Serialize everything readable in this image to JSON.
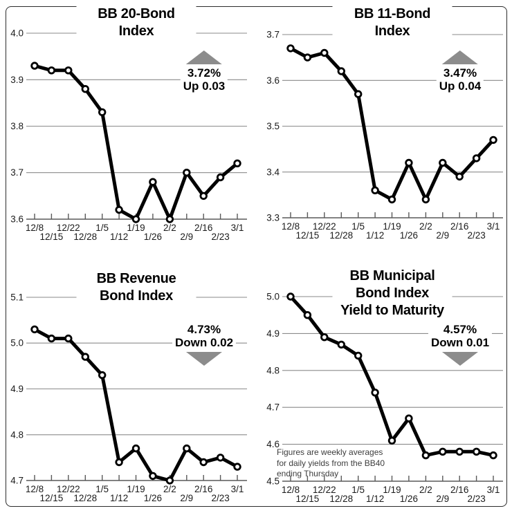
{
  "figure": {
    "colors": {
      "line": "#000000",
      "marker_fill": "#ffffff",
      "grid": "#8a8a8a",
      "arrow": "#8c8c8c"
    }
  },
  "chart_data": [
    {
      "id": "bb-20-bond-index",
      "type": "line",
      "title": "BB 20-Bond Index",
      "x": [
        "12/8",
        "12/15",
        "12/22",
        "12/28",
        "1/5",
        "1/12",
        "1/19",
        "1/26",
        "2/2",
        "2/9",
        "2/16",
        "2/23",
        "3/1"
      ],
      "values": [
        3.93,
        3.92,
        3.92,
        3.88,
        3.83,
        3.62,
        3.6,
        3.68,
        3.6,
        3.7,
        3.65,
        3.69,
        3.72
      ],
      "y_ticks": [
        "4.0",
        "3.9",
        "3.8",
        "3.7",
        "3.6"
      ],
      "ylim": [
        3.6,
        4.0
      ],
      "grid": true,
      "legend": null,
      "annotation": {
        "value": "3.72%",
        "change": "Up 0.03",
        "direction": "up"
      }
    },
    {
      "id": "bb-11-bond-index",
      "type": "line",
      "title": "BB 11-Bond Index",
      "x": [
        "12/8",
        "12/15",
        "12/22",
        "12/28",
        "1/5",
        "1/12",
        "1/19",
        "1/26",
        "2/2",
        "2/9",
        "2/16",
        "2/23",
        "3/1"
      ],
      "values": [
        3.67,
        3.65,
        3.66,
        3.62,
        3.57,
        3.36,
        3.34,
        3.42,
        3.34,
        3.42,
        3.39,
        3.43,
        3.47
      ],
      "y_ticks": [
        "3.7",
        "3.6",
        "3.5",
        "3.4",
        "3.3"
      ],
      "ylim": [
        3.3,
        3.7
      ],
      "grid": true,
      "legend": null,
      "annotation": {
        "value": "3.47%",
        "change": "Up 0.04",
        "direction": "up"
      }
    },
    {
      "id": "bb-revenue-bond-index",
      "type": "line",
      "title": "BB Revenue Bond Index",
      "x": [
        "12/8",
        "12/15",
        "12/22",
        "12/28",
        "1/5",
        "1/12",
        "1/19",
        "1/26",
        "2/2",
        "2/9",
        "2/16",
        "2/23",
        "3/1"
      ],
      "values": [
        5.03,
        5.01,
        5.01,
        4.97,
        4.93,
        4.74,
        4.77,
        4.71,
        4.7,
        4.77,
        4.74,
        4.75,
        4.73
      ],
      "y_ticks": [
        "5.1",
        "5.0",
        "4.9",
        "4.8",
        "4.7"
      ],
      "ylim": [
        4.7,
        5.1
      ],
      "grid": true,
      "legend": null,
      "annotation": {
        "value": "4.73%",
        "change": "Down 0.02",
        "direction": "down"
      }
    },
    {
      "id": "bb-municipal-bond-index-yield-to-maturity",
      "type": "line",
      "title": "BB Municipal Bond Index\nYield to Maturity",
      "x": [
        "12/8",
        "12/15",
        "12/22",
        "12/28",
        "1/5",
        "1/12",
        "1/19",
        "1/26",
        "2/2",
        "2/9",
        "2/16",
        "2/23",
        "3/1"
      ],
      "values": [
        5.0,
        4.95,
        4.89,
        4.87,
        4.84,
        4.74,
        4.61,
        4.67,
        4.57,
        4.58,
        4.58,
        4.58,
        4.57
      ],
      "y_ticks": [
        "5.0",
        "4.9",
        "4.8",
        "4.7",
        "4.6",
        "4.5"
      ],
      "ylim": [
        4.5,
        5.0
      ],
      "grid": true,
      "legend": null,
      "annotation": {
        "value": "4.57%",
        "change": "Down 0.01",
        "direction": "down"
      },
      "footnote": "Figures are weekly averages\nfor daily yields from the BB40\nending Thursday"
    }
  ]
}
